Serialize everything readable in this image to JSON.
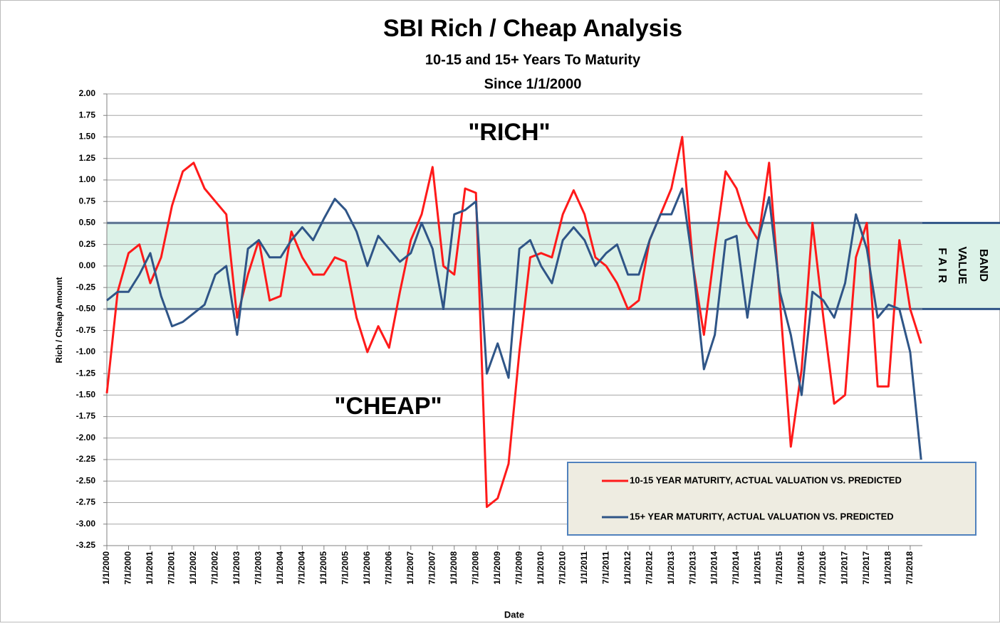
{
  "chart_data": {
    "type": "line",
    "title": "SBI Rich / Cheap Analysis",
    "subtitle": [
      "10-15 and 15+ Years To Maturity",
      "Since 1/1/2000"
    ],
    "x_label": "Date",
    "y_label": "Rich / Cheap Amount",
    "annotations": [
      "\"RICH\"",
      "\"CHEAP\""
    ],
    "band": {
      "range": [
        -0.5,
        0.5
      ],
      "label": [
        "F A I R",
        "VALUE",
        "BAND"
      ],
      "color": "#dcf2e8",
      "edge_color": "#2f5587"
    },
    "grid": true,
    "xlim": [
      2000,
      2018.78
    ],
    "ylim": [
      -3.25,
      2.0
    ],
    "yticks": [
      {
        "value": 2.0,
        "label": "2.00"
      },
      {
        "value": 1.75,
        "label": "1.75"
      },
      {
        "value": 1.5,
        "label": "1.50"
      },
      {
        "value": 1.25,
        "label": "1.25"
      },
      {
        "value": 1.0,
        "label": "1.00"
      },
      {
        "value": 0.75,
        "label": "0.75"
      },
      {
        "value": 0.5,
        "label": "0.50"
      },
      {
        "value": 0.25,
        "label": "0.25"
      },
      {
        "value": 0,
        "label": "0.00"
      },
      {
        "value": -0.25,
        "label": "-0.25"
      },
      {
        "value": -0.5,
        "label": "-0.50"
      },
      {
        "value": -0.75,
        "label": "-0.75"
      },
      {
        "value": -1.0,
        "label": "-1.00"
      },
      {
        "value": -1.25,
        "label": "-1.25"
      },
      {
        "value": -1.5,
        "label": "-1.50"
      },
      {
        "value": -1.75,
        "label": "-1.75"
      },
      {
        "value": -2.0,
        "label": "-2.00"
      },
      {
        "value": -2.25,
        "label": "-2.25"
      },
      {
        "value": -2.5,
        "label": "-2.50"
      },
      {
        "value": -2.75,
        "label": "-2.75"
      },
      {
        "value": -3.0,
        "label": "-3.00"
      },
      {
        "value": -3.25,
        "label": "-3.25"
      }
    ],
    "xticks": [
      {
        "value": 2000,
        "label": "1/1/2000"
      },
      {
        "value": 2000.5,
        "label": "7/1/2000"
      },
      {
        "value": 2001,
        "label": "1/1/2001"
      },
      {
        "value": 2001.5,
        "label": "7/1/2001"
      },
      {
        "value": 2002,
        "label": "1/1/2002"
      },
      {
        "value": 2002.5,
        "label": "7/1/2002"
      },
      {
        "value": 2003,
        "label": "1/1/2003"
      },
      {
        "value": 2003.5,
        "label": "7/1/2003"
      },
      {
        "value": 2004,
        "label": "1/1/2004"
      },
      {
        "value": 2004.5,
        "label": "7/1/2004"
      },
      {
        "value": 2005,
        "label": "1/1/2005"
      },
      {
        "value": 2005.5,
        "label": "7/1/2005"
      },
      {
        "value": 2006,
        "label": "1/1/2006"
      },
      {
        "value": 2006.5,
        "label": "7/1/2006"
      },
      {
        "value": 2007,
        "label": "1/1/2007"
      },
      {
        "value": 2007.5,
        "label": "7/1/2007"
      },
      {
        "value": 2008,
        "label": "1/1/2008"
      },
      {
        "value": 2008.5,
        "label": "7/1/2008"
      },
      {
        "value": 2009,
        "label": "1/1/2009"
      },
      {
        "value": 2009.5,
        "label": "7/1/2009"
      },
      {
        "value": 2010,
        "label": "1/1/2010"
      },
      {
        "value": 2010.5,
        "label": "7/1/2010"
      },
      {
        "value": 2011,
        "label": "1/1/2011"
      },
      {
        "value": 2011.5,
        "label": "7/1/2011"
      },
      {
        "value": 2012,
        "label": "1/1/2012"
      },
      {
        "value": 2012.5,
        "label": "7/1/2012"
      },
      {
        "value": 2013,
        "label": "1/1/2013"
      },
      {
        "value": 2013.5,
        "label": "7/1/2013"
      },
      {
        "value": 2014,
        "label": "1/1/2014"
      },
      {
        "value": 2014.5,
        "label": "7/1/2014"
      },
      {
        "value": 2015,
        "label": "1/1/2015"
      },
      {
        "value": 2015.5,
        "label": "7/1/2015"
      },
      {
        "value": 2016,
        "label": "1/1/2016"
      },
      {
        "value": 2016.5,
        "label": "7/1/2016"
      },
      {
        "value": 2017,
        "label": "1/1/2017"
      },
      {
        "value": 2017.5,
        "label": "7/1/2017"
      },
      {
        "value": 2018,
        "label": "1/1/2018"
      },
      {
        "value": 2018.5,
        "label": "7/1/2018"
      }
    ],
    "x": [
      2000,
      2000.25,
      2000.5,
      2000.75,
      2001,
      2001.25,
      2001.5,
      2001.75,
      2002,
      2002.25,
      2002.5,
      2002.75,
      2003,
      2003.25,
      2003.5,
      2003.75,
      2004,
      2004.25,
      2004.5,
      2004.75,
      2005,
      2005.25,
      2005.5,
      2005.75,
      2006,
      2006.25,
      2006.5,
      2006.75,
      2007,
      2007.25,
      2007.5,
      2007.75,
      2008,
      2008.25,
      2008.5,
      2008.75,
      2009,
      2009.25,
      2009.5,
      2009.75,
      2010,
      2010.25,
      2010.5,
      2010.75,
      2011,
      2011.25,
      2011.5,
      2011.75,
      2012,
      2012.25,
      2012.5,
      2012.75,
      2013,
      2013.25,
      2013.5,
      2013.75,
      2014,
      2014.25,
      2014.5,
      2014.75,
      2015,
      2015.25,
      2015.5,
      2015.75,
      2016,
      2016.25,
      2016.5,
      2016.75,
      2017,
      2017.25,
      2017.5,
      2017.75,
      2018,
      2018.25,
      2018.5,
      2018.75
    ],
    "series": [
      {
        "name": "10-15 YEAR MATURITY, ACTUAL VALUATION VS. PREDICTED",
        "color": "#ff1a1a",
        "values": [
          -1.48,
          -0.3,
          0.15,
          0.25,
          -0.2,
          0.1,
          0.7,
          1.1,
          1.2,
          0.9,
          0.75,
          0.6,
          -0.6,
          -0.1,
          0.3,
          -0.4,
          -0.35,
          0.4,
          0.1,
          -0.1,
          -0.1,
          0.1,
          0.05,
          -0.6,
          -1.0,
          -0.7,
          -0.95,
          -0.3,
          0.3,
          0.6,
          1.15,
          0.0,
          -0.1,
          0.9,
          0.85,
          -2.8,
          -2.7,
          -2.3,
          -1.0,
          0.1,
          0.15,
          0.1,
          0.6,
          0.88,
          0.6,
          0.1,
          0.0,
          -0.2,
          -0.5,
          -0.4,
          0.3,
          0.6,
          0.9,
          1.5,
          0.0,
          -0.8,
          0.2,
          1.1,
          0.9,
          0.5,
          0.3,
          1.2,
          -0.4,
          -2.1,
          -1.2,
          0.5,
          -0.6,
          -1.6,
          -1.5,
          0.1,
          0.5,
          -1.4,
          -1.4,
          0.3,
          -0.5,
          -0.9
        ]
      },
      {
        "name": "15+ YEAR MATURITY, ACTUAL VALUATION VS. PREDICTED",
        "color": "#2f5587",
        "values": [
          -0.4,
          -0.3,
          -0.3,
          -0.1,
          0.15,
          -0.35,
          -0.7,
          -0.65,
          -0.55,
          -0.45,
          -0.1,
          0.0,
          -0.8,
          0.2,
          0.3,
          0.1,
          0.1,
          0.3,
          0.45,
          0.3,
          0.55,
          0.78,
          0.65,
          0.4,
          0.0,
          0.35,
          0.2,
          0.05,
          0.15,
          0.5,
          0.2,
          -0.5,
          0.6,
          0.65,
          0.75,
          -1.25,
          -0.9,
          -1.3,
          0.2,
          0.3,
          0.0,
          -0.2,
          0.3,
          0.45,
          0.3,
          0.0,
          0.15,
          0.25,
          -0.1,
          -0.1,
          0.3,
          0.6,
          0.6,
          0.9,
          0.0,
          -1.2,
          -0.8,
          0.3,
          0.35,
          -0.6,
          0.3,
          0.8,
          -0.3,
          -0.8,
          -1.5,
          -0.3,
          -0.4,
          -0.6,
          -0.2,
          0.6,
          0.2,
          -0.6,
          -0.45,
          -0.5,
          -1.0,
          -2.25
        ]
      }
    ]
  }
}
